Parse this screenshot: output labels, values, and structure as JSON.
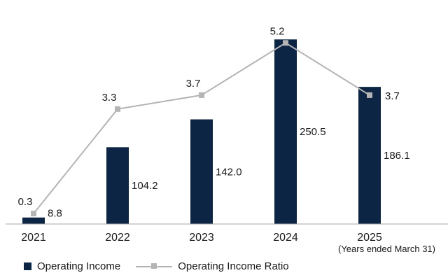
{
  "chart_data": {
    "type": "bar",
    "categories": [
      "2021",
      "2022",
      "2023",
      "2024",
      "2025"
    ],
    "series": [
      {
        "name": "Operating Income",
        "type": "bar",
        "values": [
          8.8,
          104.2,
          142.0,
          250.5,
          186.1
        ],
        "labels": [
          "8.8",
          "104.2",
          "142.0",
          "250.5",
          "186.1"
        ],
        "color": "#0d2544",
        "axis": "left"
      },
      {
        "name": "Operating Income Ratio",
        "type": "line",
        "values": [
          0.3,
          3.3,
          3.7,
          5.2,
          3.7
        ],
        "labels": [
          "0.3",
          "3.3",
          "3.7",
          "5.2",
          "3.7"
        ],
        "color": "#b4b4b4",
        "axis": "right"
      }
    ],
    "axis_note": "(Years ended March 31)",
    "ylim_left": [
      0,
      285
    ],
    "ylim_right": [
      0,
      6.03
    ],
    "grid": false,
    "legend_position": "bottom-left"
  }
}
